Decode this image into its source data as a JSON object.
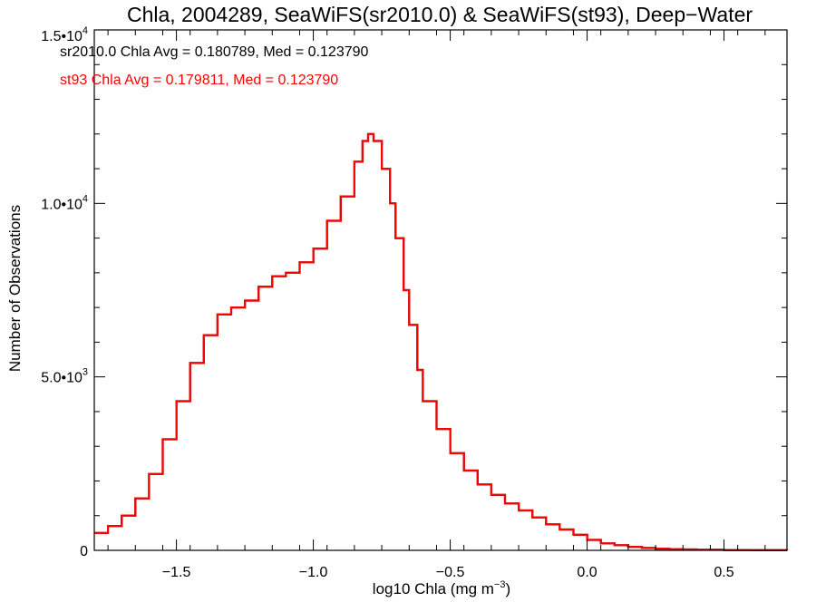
{
  "chart_data": {
    "type": "line",
    "style": "step-histogram",
    "title": "Chla, 2004289, SeaWiFS(sr2010.0) & SeaWiFS(st93), Deep−Water",
    "xlabel_parts": [
      "log10 Chla (mg m",
      "−3",
      ")"
    ],
    "ylabel": "Number of Observations",
    "xlim": [
      -1.8,
      0.73
    ],
    "ylim": [
      0,
      15000
    ],
    "x_ticks": [
      {
        "value": -1.5,
        "label": "−1.5"
      },
      {
        "value": -1.0,
        "label": "−1.0"
      },
      {
        "value": -0.5,
        "label": "−0.5"
      },
      {
        "value": 0.0,
        "label": "0.0"
      },
      {
        "value": 0.5,
        "label": "0.5"
      }
    ],
    "y_ticks": [
      {
        "value": 0,
        "mant": "0",
        "exp": ""
      },
      {
        "value": 5000,
        "mant": "5.0•10",
        "exp": "3"
      },
      {
        "value": 10000,
        "mant": "1.0•10",
        "exp": "4"
      },
      {
        "value": 15000,
        "mant": "1.5•10",
        "exp": "4"
      }
    ],
    "annotations": [
      {
        "text": "sr2010.0 Chla Avg = 0.180789, Med = 0.123790",
        "color": "#000000"
      },
      {
        "text": "st93 Chla Avg = 0.179811, Med = 0.123790",
        "color": "#ff0000"
      }
    ],
    "series": [
      {
        "name": "sr2010.0",
        "color": "#000000",
        "x": [
          -1.8,
          -1.75,
          -1.7,
          -1.65,
          -1.6,
          -1.55,
          -1.5,
          -1.45,
          -1.4,
          -1.35,
          -1.3,
          -1.25,
          -1.2,
          -1.15,
          -1.1,
          -1.05,
          -1.0,
          -0.95,
          -0.9,
          -0.85,
          -0.82,
          -0.8,
          -0.78,
          -0.75,
          -0.72,
          -0.7,
          -0.67,
          -0.65,
          -0.62,
          -0.6,
          -0.55,
          -0.5,
          -0.45,
          -0.4,
          -0.35,
          -0.3,
          -0.25,
          -0.2,
          -0.15,
          -0.1,
          -0.05,
          0.0,
          0.05,
          0.1,
          0.15,
          0.2,
          0.25,
          0.3,
          0.35,
          0.4,
          0.5,
          0.6,
          0.73
        ],
        "y": [
          500,
          700,
          1000,
          1500,
          2200,
          3200,
          4300,
          5400,
          6200,
          6800,
          7000,
          7200,
          7600,
          7900,
          8000,
          8300,
          8700,
          9500,
          10200,
          11200,
          11800,
          12000,
          11800,
          11000,
          10000,
          9000,
          7500,
          6500,
          5200,
          4300,
          3500,
          2800,
          2300,
          1900,
          1600,
          1350,
          1150,
          950,
          750,
          600,
          450,
          300,
          200,
          150,
          100,
          70,
          50,
          35,
          25,
          15,
          8,
          4,
          2
        ]
      },
      {
        "name": "st93",
        "color": "#ff0000",
        "x": [
          -1.8,
          -1.75,
          -1.7,
          -1.65,
          -1.6,
          -1.55,
          -1.5,
          -1.45,
          -1.4,
          -1.35,
          -1.3,
          -1.25,
          -1.2,
          -1.15,
          -1.1,
          -1.05,
          -1.0,
          -0.95,
          -0.9,
          -0.85,
          -0.82,
          -0.8,
          -0.78,
          -0.75,
          -0.72,
          -0.7,
          -0.67,
          -0.65,
          -0.62,
          -0.6,
          -0.55,
          -0.5,
          -0.45,
          -0.4,
          -0.35,
          -0.3,
          -0.25,
          -0.2,
          -0.15,
          -0.1,
          -0.05,
          0.0,
          0.05,
          0.1,
          0.15,
          0.2,
          0.25,
          0.3,
          0.35,
          0.4,
          0.5,
          0.6,
          0.73
        ],
        "y": [
          500,
          700,
          1000,
          1500,
          2200,
          3200,
          4300,
          5400,
          6200,
          6800,
          7000,
          7200,
          7600,
          7900,
          8000,
          8300,
          8700,
          9500,
          10200,
          11200,
          11800,
          12000,
          11800,
          11000,
          10000,
          9000,
          7500,
          6500,
          5200,
          4300,
          3500,
          2800,
          2300,
          1900,
          1600,
          1350,
          1150,
          950,
          750,
          600,
          450,
          300,
          200,
          150,
          100,
          70,
          50,
          35,
          25,
          15,
          8,
          4,
          2
        ]
      }
    ],
    "grid": false,
    "legend": "none"
  }
}
